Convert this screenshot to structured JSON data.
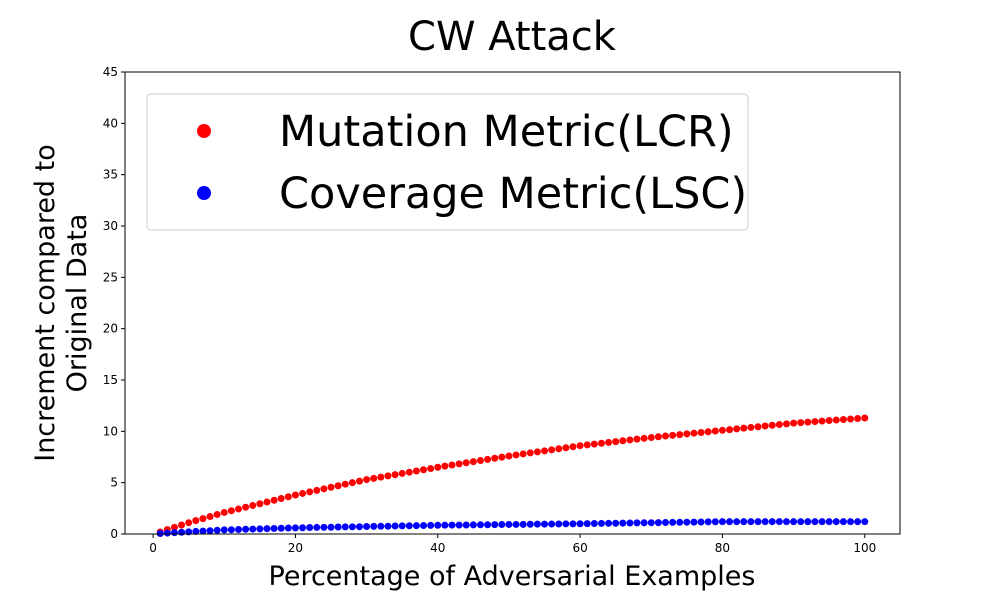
{
  "chart_data": {
    "type": "scatter",
    "title": "CW Attack",
    "xlabel": "Percentage of Adversarial Examples",
    "ylabel": [
      "Increment compared to",
      "Original Data"
    ],
    "xlim": [
      -3.95,
      104.95
    ],
    "ylim": [
      0,
      45
    ],
    "xticks": [
      0,
      20,
      40,
      60,
      80,
      100
    ],
    "yticks": [
      0,
      5,
      10,
      15,
      20,
      25,
      30,
      35,
      40,
      45
    ],
    "legend": "upper left",
    "x": [
      1,
      2,
      3,
      4,
      5,
      6,
      7,
      8,
      9,
      10,
      11,
      12,
      13,
      14,
      15,
      16,
      17,
      18,
      19,
      20,
      21,
      22,
      23,
      24,
      25,
      26,
      27,
      28,
      29,
      30,
      31,
      32,
      33,
      34,
      35,
      36,
      37,
      38,
      39,
      40,
      41,
      42,
      43,
      44,
      45,
      46,
      47,
      48,
      49,
      50,
      51,
      52,
      53,
      54,
      55,
      56,
      57,
      58,
      59,
      60,
      61,
      62,
      63,
      64,
      65,
      66,
      67,
      68,
      69,
      70,
      71,
      72,
      73,
      74,
      75,
      76,
      77,
      78,
      79,
      80,
      81,
      82,
      83,
      84,
      85,
      86,
      87,
      88,
      89,
      90,
      91,
      92,
      93,
      94,
      95,
      96,
      97,
      98,
      99,
      100
    ],
    "series": [
      {
        "name": "Mutation Metric(LCR)",
        "color": "#ff0000",
        "values": [
          0.2,
          0.43,
          0.65,
          0.88,
          1.1,
          1.3,
          1.5,
          1.7,
          1.9,
          2.1,
          2.27,
          2.44,
          2.61,
          2.78,
          2.95,
          3.12,
          3.29,
          3.46,
          3.63,
          3.8,
          3.95,
          4.1,
          4.25,
          4.4,
          4.55,
          4.7,
          4.85,
          5.0,
          5.15,
          5.3,
          5.42,
          5.54,
          5.66,
          5.78,
          5.9,
          6.02,
          6.14,
          6.26,
          6.38,
          6.5,
          6.61,
          6.72,
          6.83,
          6.94,
          7.05,
          7.16,
          7.27,
          7.38,
          7.49,
          7.6,
          7.7,
          7.8,
          7.9,
          8.0,
          8.1,
          8.2,
          8.3,
          8.4,
          8.5,
          8.6,
          8.68,
          8.76,
          8.84,
          8.92,
          9.0,
          9.08,
          9.16,
          9.24,
          9.32,
          9.4,
          9.47,
          9.54,
          9.61,
          9.68,
          9.75,
          9.82,
          9.89,
          9.96,
          10.03,
          10.1,
          10.17,
          10.24,
          10.31,
          10.38,
          10.45,
          10.52,
          10.59,
          10.66,
          10.73,
          10.8,
          10.85,
          10.9,
          10.95,
          11.0,
          11.05,
          11.1,
          11.15,
          11.2,
          11.25,
          11.3
        ]
      },
      {
        "name": "Coverage Metric(LSC)",
        "color": "#0000ff",
        "values": [
          0.05,
          0.09,
          0.13,
          0.17,
          0.21,
          0.25,
          0.28,
          0.32,
          0.36,
          0.4,
          0.42,
          0.44,
          0.46,
          0.48,
          0.5,
          0.52,
          0.54,
          0.56,
          0.58,
          0.6,
          0.61,
          0.63,
          0.64,
          0.65,
          0.66,
          0.68,
          0.69,
          0.7,
          0.71,
          0.73,
          0.74,
          0.75,
          0.76,
          0.78,
          0.79,
          0.8,
          0.81,
          0.83,
          0.84,
          0.85,
          0.86,
          0.87,
          0.87,
          0.88,
          0.89,
          0.9,
          0.9,
          0.91,
          0.92,
          0.93,
          0.93,
          0.94,
          0.95,
          0.96,
          0.96,
          0.97,
          0.98,
          0.99,
          0.99,
          1.0,
          1.01,
          1.02,
          1.03,
          1.04,
          1.05,
          1.06,
          1.07,
          1.08,
          1.09,
          1.1,
          1.11,
          1.12,
          1.13,
          1.14,
          1.15,
          1.16,
          1.17,
          1.18,
          1.19,
          1.2,
          1.2,
          1.2,
          1.2,
          1.2,
          1.2,
          1.2,
          1.2,
          1.2,
          1.2,
          1.2,
          1.2,
          1.2,
          1.2,
          1.2,
          1.2,
          1.2,
          1.2,
          1.2,
          1.2,
          1.2
        ]
      }
    ]
  }
}
